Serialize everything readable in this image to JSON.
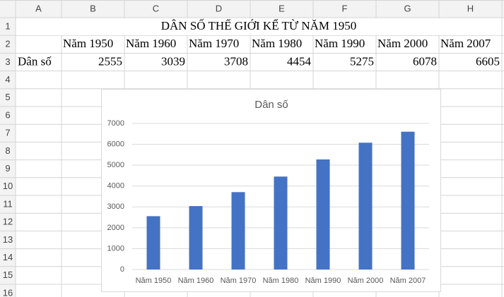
{
  "sheet": {
    "columns": [
      "A",
      "B",
      "C",
      "D",
      "E",
      "F",
      "G",
      "H"
    ],
    "rows": [
      1,
      2,
      3,
      4,
      5,
      6,
      7,
      8,
      9,
      10,
      11,
      12,
      13,
      14,
      15,
      16
    ],
    "title": "DÂN SỐ THẾ GIỚI KỂ TỪ NĂM 1950",
    "headers": [
      "Năm 1950",
      "Năm 1960",
      "Năm 1970",
      "Năm 1980",
      "Năm 1990",
      "Năm 2000",
      "Năm 2007"
    ],
    "row_label": "Dân số",
    "values": [
      2555,
      3039,
      3708,
      4454,
      5275,
      6078,
      6605
    ]
  },
  "chart_data": {
    "type": "bar",
    "title": "Dân số",
    "categories": [
      "Năm 1950",
      "Năm 1960",
      "Năm 1970",
      "Năm 1980",
      "Năm 1990",
      "Năm 2000",
      "Năm 2007"
    ],
    "values": [
      2555,
      3039,
      3708,
      4454,
      5275,
      6078,
      6605
    ],
    "color": "#4472c4",
    "ylim": [
      0,
      7000
    ],
    "yticks": [
      0,
      1000,
      2000,
      3000,
      4000,
      5000,
      6000,
      7000
    ],
    "grid": true
  }
}
